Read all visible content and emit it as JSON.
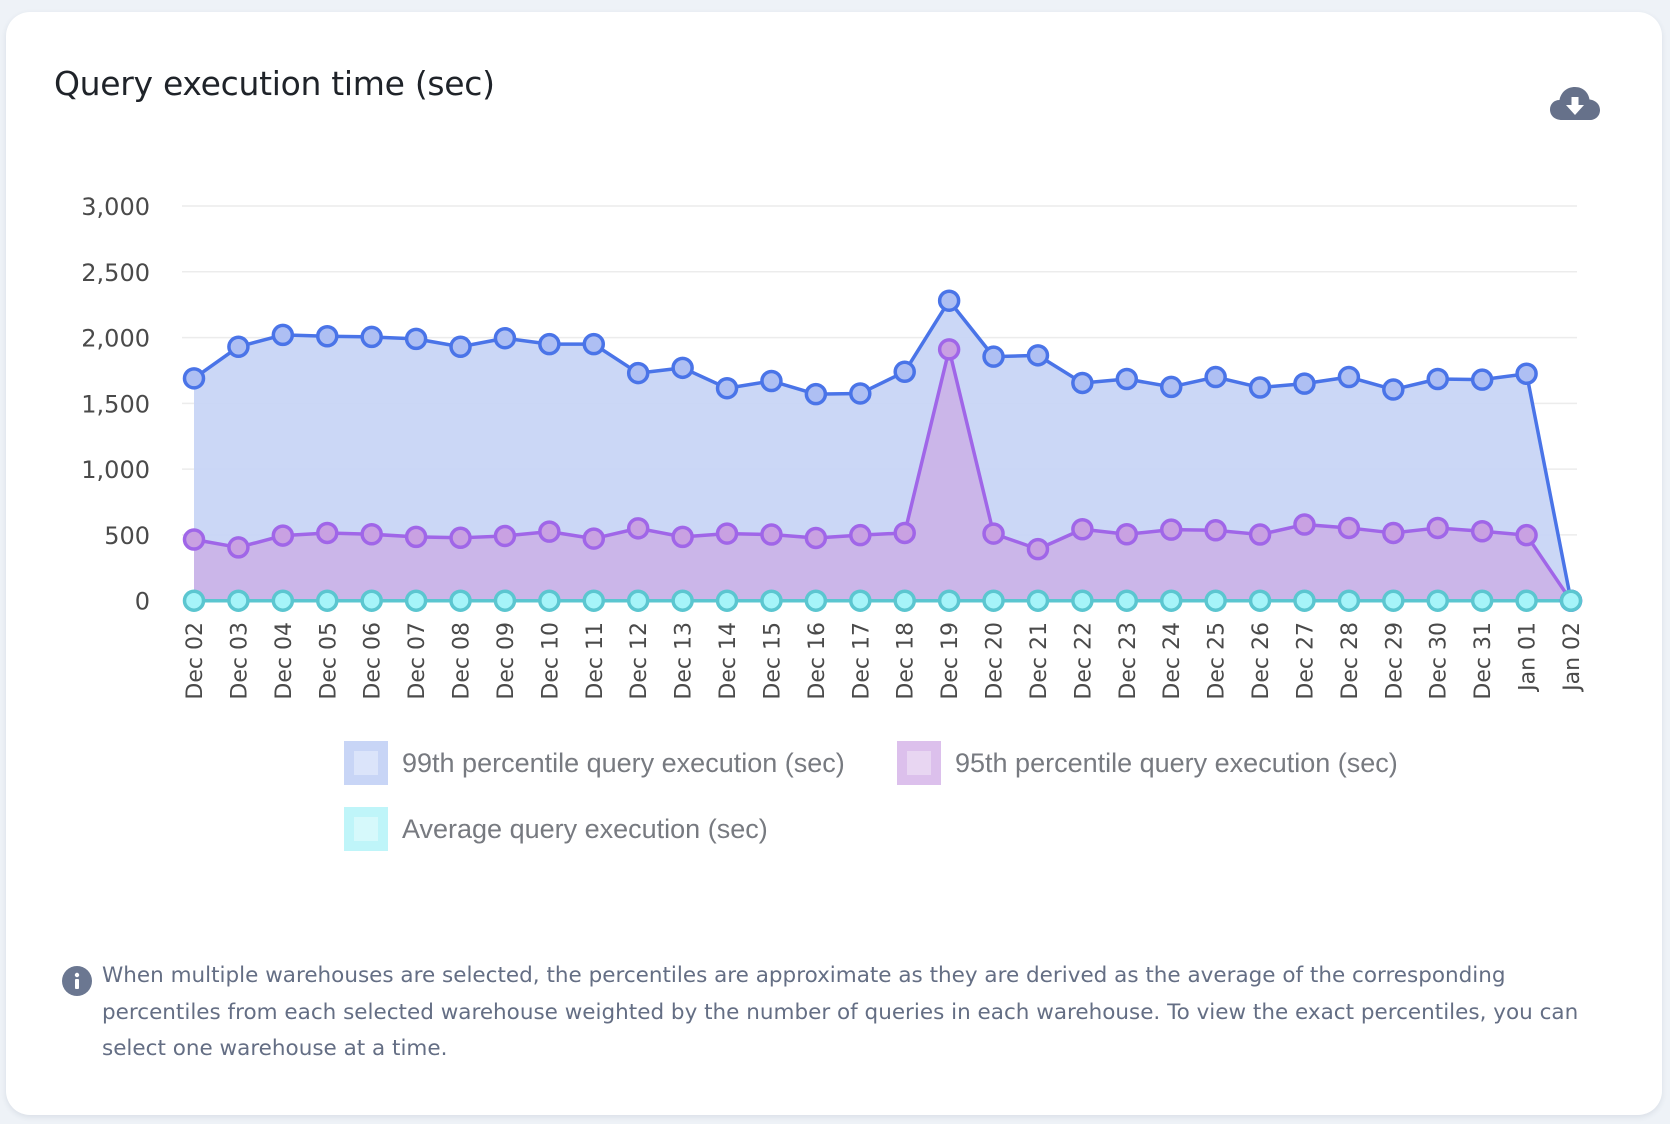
{
  "card": {
    "title": "Query execution time (sec)",
    "download_icon": "cloud-download-icon",
    "note_icon": "info-icon",
    "note": "When multiple warehouses are selected, the percentiles are approximate as they are derived as the average of the corresponding percentiles from each selected warehouse weighted by the number of queries in each warehouse. To view the exact percentiles, you can select one warehouse at a time."
  },
  "chart_data": {
    "type": "area",
    "title": "Query execution time (sec)",
    "xlabel": "",
    "ylabel": "",
    "ylim": [
      0,
      3000
    ],
    "yticks": [
      0,
      500,
      1000,
      1500,
      2000,
      2500,
      3000
    ],
    "ytick_labels": [
      "0",
      "500",
      "1,000",
      "1,500",
      "2,000",
      "2,500",
      "3,000"
    ],
    "grid": true,
    "legend_position": "bottom",
    "categories": [
      "Dec 02",
      "Dec 03",
      "Dec 04",
      "Dec 05",
      "Dec 06",
      "Dec 07",
      "Dec 08",
      "Dec 09",
      "Dec 10",
      "Dec 11",
      "Dec 12",
      "Dec 13",
      "Dec 14",
      "Dec 15",
      "Dec 16",
      "Dec 17",
      "Dec 18",
      "Dec 19",
      "Dec 20",
      "Dec 21",
      "Dec 22",
      "Dec 23",
      "Dec 24",
      "Dec 25",
      "Dec 26",
      "Dec 27",
      "Dec 28",
      "Dec 29",
      "Dec 30",
      "Dec 31",
      "Jan 01",
      "Jan 02"
    ],
    "series": [
      {
        "name": "99th percentile query execution (sec)",
        "line_color": "#4a74e8",
        "fill_color": "#c8d5f6",
        "marker_color": "#aebff3",
        "values": [
          1690,
          1930,
          2020,
          2010,
          2005,
          1990,
          1930,
          1995,
          1950,
          1950,
          1730,
          1770,
          1615,
          1670,
          1570,
          1575,
          1740,
          2280,
          1855,
          1865,
          1655,
          1685,
          1625,
          1700,
          1620,
          1650,
          1700,
          1605,
          1685,
          1680,
          1725,
          0
        ]
      },
      {
        "name": "95th percentile query execution (sec)",
        "line_color": "#a066e8",
        "fill_color": "#cbb3e8",
        "marker_color": "#c9a1e2",
        "values": [
          465,
          405,
          495,
          515,
          505,
          485,
          478,
          492,
          525,
          472,
          550,
          485,
          510,
          503,
          477,
          498,
          515,
          1910,
          510,
          392,
          543,
          505,
          540,
          535,
          503,
          579,
          553,
          515,
          553,
          528,
          498,
          0
        ]
      },
      {
        "name": "Average query execution (sec)",
        "line_color": "#5bc6d0",
        "fill_color": "#b9f3f7",
        "marker_color": "#a6f4f9",
        "values": [
          0,
          0,
          0,
          0,
          0,
          0,
          0,
          0,
          0,
          0,
          0,
          0,
          0,
          0,
          0,
          0,
          0,
          0,
          0,
          0,
          0,
          0,
          0,
          0,
          0,
          0,
          0,
          0,
          0,
          0,
          0,
          0
        ]
      }
    ]
  },
  "legend": [
    {
      "label": "99th percentile query execution (sec)",
      "swatch": "#c8d5f6",
      "swatch_inner": "#dbe4fa"
    },
    {
      "label": "95th percentile query execution (sec)",
      "swatch": "#dcc0ec",
      "swatch_inner": "#e8d6f2"
    },
    {
      "label": "Average query execution (sec)",
      "swatch": "#bff5f9",
      "swatch_inner": "#d6f9fb"
    }
  ]
}
